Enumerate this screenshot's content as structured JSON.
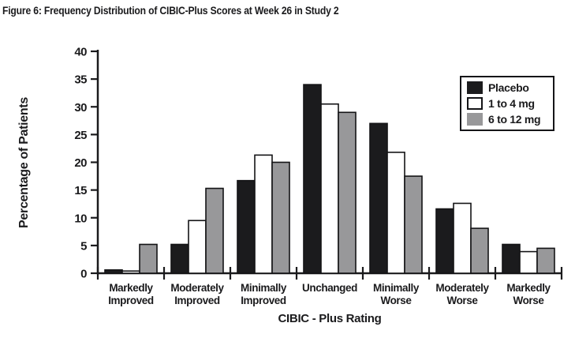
{
  "chart_data": {
    "type": "bar",
    "title": "Figure 6: Frequency Distribution of CIBIC-Plus Scores at Week 26 in Study 2",
    "xlabel": "CIBIC - Plus Rating",
    "ylabel": "Percentage of Patients",
    "ylim": [
      0,
      40
    ],
    "ytick_step": 5,
    "grid": false,
    "legend_position": "top-right",
    "categories": [
      "Markedly Improved",
      "Moderately Improved",
      "Minimally Improved",
      "Unchanged",
      "Minimally Worse",
      "Moderately Worse",
      "Markedly Worse"
    ],
    "series": [
      {
        "name": "Placebo",
        "color": "#1b1b1d",
        "values": [
          0.6,
          5.2,
          16.7,
          34.0,
          27.0,
          11.6,
          5.2
        ]
      },
      {
        "name": "1 to 4 mg",
        "color": "#ffffff",
        "values": [
          0.4,
          9.5,
          21.3,
          30.5,
          21.8,
          12.6,
          3.9
        ]
      },
      {
        "name": "6 to 12 mg",
        "color": "#98989a",
        "values": [
          5.2,
          15.3,
          20.0,
          29.0,
          17.5,
          8.1,
          4.5
        ]
      }
    ],
    "colors": {
      "axis": "#1a1a1c",
      "bar_outline": "#141416",
      "text": "#1a1a1c"
    }
  }
}
